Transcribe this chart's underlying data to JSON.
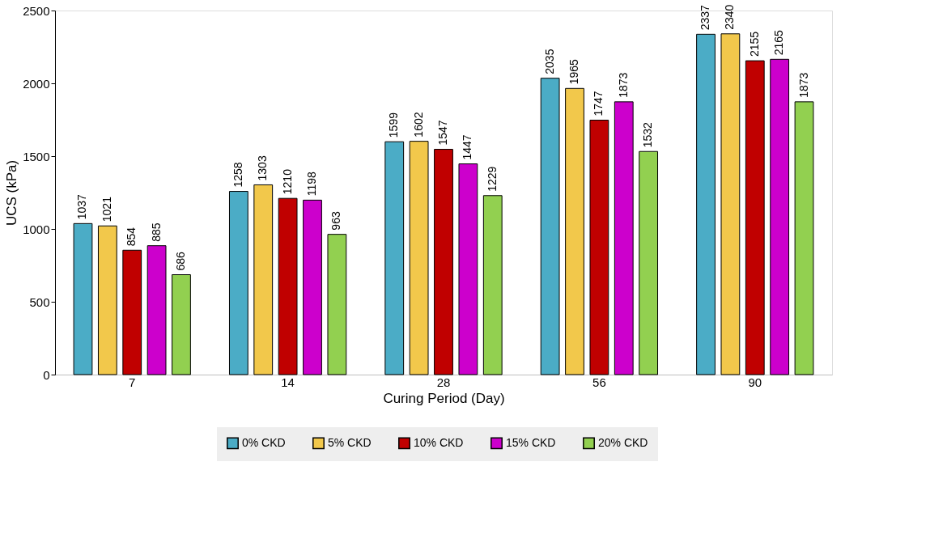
{
  "chart_data": {
    "type": "bar",
    "xlabel": "Curing Period (Day)",
    "ylabel": "UCS (kPa)",
    "categories": [
      "7",
      "14",
      "28",
      "56",
      "90"
    ],
    "series": [
      {
        "name": "0% CKD",
        "color": "#4bacc6",
        "values": [
          1037,
          1258,
          1599,
          2035,
          2337
        ]
      },
      {
        "name": "5% CKD",
        "color": "#f2c84b",
        "values": [
          1021,
          1303,
          1602,
          1965,
          2340
        ]
      },
      {
        "name": "10% CKD",
        "color": "#c00000",
        "values": [
          854,
          1210,
          1547,
          1747,
          2155
        ]
      },
      {
        "name": "15% CKD",
        "color": "#cc00cc",
        "values": [
          885,
          1198,
          1447,
          1873,
          2165
        ]
      },
      {
        "name": "20% CKD",
        "color": "#92d050",
        "values": [
          686,
          963,
          1229,
          1532,
          1873
        ]
      }
    ],
    "ylim": [
      0,
      2500
    ],
    "yticks": [
      0,
      500,
      1000,
      1500,
      2000,
      2500
    ],
    "grid": false,
    "legend": "bottom",
    "data_labels": true
  }
}
